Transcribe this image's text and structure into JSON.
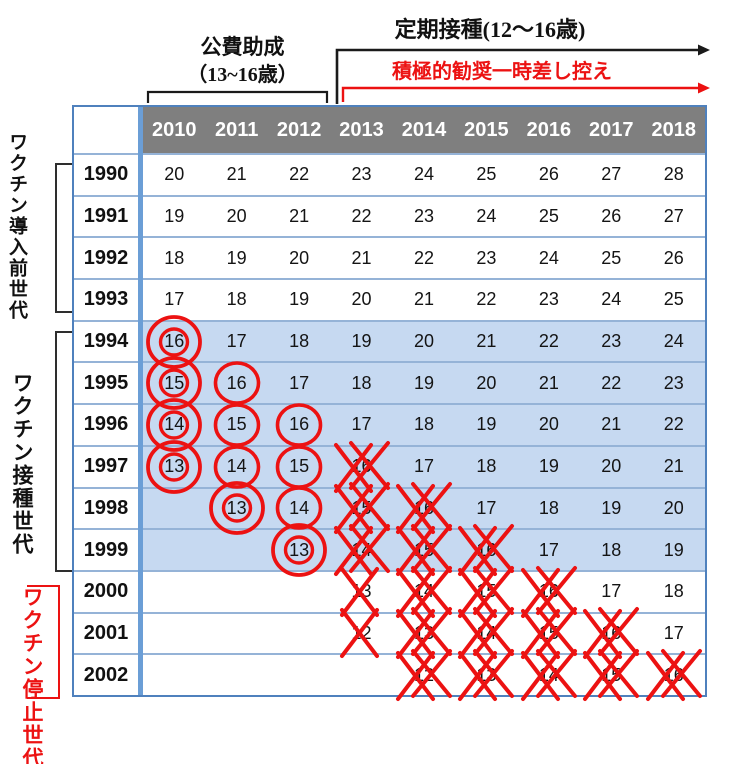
{
  "annotations": {
    "routine": "定期接種(12～16歳)",
    "subsidy_title": "公費助成",
    "subsidy_range": "（13~16歳）",
    "suspension": "積極的勧奨一時差し控え"
  },
  "side_labels": {
    "pre_vaccine": "ワクチン導入前世代",
    "vaccinated": "ワクチン接種世代",
    "stopped": "ワクチン停止世代"
  },
  "colors": {
    "accent_red": "#ec1212",
    "header_gray": "#7f7f7f",
    "highlight_blue": "#c6d9f1",
    "grid_blue": "#95b3d7",
    "outer_border_blue": "#4f81bd",
    "divider_blue": "#6b9ed6",
    "line_black": "#1a1a1a"
  },
  "chart_data": {
    "type": "table",
    "columns": [
      "2010",
      "2011",
      "2012",
      "2013",
      "2014",
      "2015",
      "2016",
      "2017",
      "2018"
    ],
    "row_header": "birth year",
    "cell_value": "age in that calendar year",
    "mark_codes": {
      "circle": "single red circle",
      "circle2": "double red circle",
      "x": "single red X strike",
      "xx": "double red X strike"
    },
    "row_groups": [
      {
        "label": "ワクチン導入前世代",
        "years": "1990–1993",
        "color": "#111111"
      },
      {
        "label": "ワクチン接種世代",
        "years": "1994–1999",
        "color": "#111111"
      },
      {
        "label": "ワクチン停止世代",
        "years": "2000–2002",
        "color": "#ec1212"
      }
    ],
    "rows": [
      {
        "year": "1990",
        "hl": false,
        "cells": [
          {
            "v": "20"
          },
          {
            "v": "21"
          },
          {
            "v": "22"
          },
          {
            "v": "23"
          },
          {
            "v": "24"
          },
          {
            "v": "25"
          },
          {
            "v": "26"
          },
          {
            "v": "27"
          },
          {
            "v": "28"
          }
        ]
      },
      {
        "year": "1991",
        "hl": false,
        "cells": [
          {
            "v": "19"
          },
          {
            "v": "20"
          },
          {
            "v": "21"
          },
          {
            "v": "22"
          },
          {
            "v": "23"
          },
          {
            "v": "24"
          },
          {
            "v": "25"
          },
          {
            "v": "26"
          },
          {
            "v": "27"
          }
        ]
      },
      {
        "year": "1992",
        "hl": false,
        "cells": [
          {
            "v": "18"
          },
          {
            "v": "19"
          },
          {
            "v": "20"
          },
          {
            "v": "21"
          },
          {
            "v": "22"
          },
          {
            "v": "23"
          },
          {
            "v": "24"
          },
          {
            "v": "25"
          },
          {
            "v": "26"
          }
        ]
      },
      {
        "year": "1993",
        "hl": false,
        "cells": [
          {
            "v": "17"
          },
          {
            "v": "18"
          },
          {
            "v": "19"
          },
          {
            "v": "20"
          },
          {
            "v": "21"
          },
          {
            "v": "22"
          },
          {
            "v": "23"
          },
          {
            "v": "24"
          },
          {
            "v": "25"
          }
        ]
      },
      {
        "year": "1994",
        "hl": true,
        "cells": [
          {
            "v": "16",
            "m": "circle2"
          },
          {
            "v": "17"
          },
          {
            "v": "18"
          },
          {
            "v": "19"
          },
          {
            "v": "20"
          },
          {
            "v": "21"
          },
          {
            "v": "22"
          },
          {
            "v": "23"
          },
          {
            "v": "24"
          }
        ]
      },
      {
        "year": "1995",
        "hl": true,
        "cells": [
          {
            "v": "15",
            "m": "circle2"
          },
          {
            "v": "16",
            "m": "circle"
          },
          {
            "v": "17"
          },
          {
            "v": "18"
          },
          {
            "v": "19"
          },
          {
            "v": "20"
          },
          {
            "v": "21"
          },
          {
            "v": "22"
          },
          {
            "v": "23"
          }
        ]
      },
      {
        "year": "1996",
        "hl": true,
        "cells": [
          {
            "v": "14",
            "m": "circle2"
          },
          {
            "v": "15",
            "m": "circle"
          },
          {
            "v": "16",
            "m": "circle"
          },
          {
            "v": "17"
          },
          {
            "v": "18"
          },
          {
            "v": "19"
          },
          {
            "v": "20"
          },
          {
            "v": "21"
          },
          {
            "v": "22"
          }
        ]
      },
      {
        "year": "1997",
        "hl": true,
        "cells": [
          {
            "v": "13",
            "m": "circle2"
          },
          {
            "v": "14",
            "m": "circle"
          },
          {
            "v": "15",
            "m": "circle"
          },
          {
            "v": "16",
            "m": "xx"
          },
          {
            "v": "17"
          },
          {
            "v": "18"
          },
          {
            "v": "19"
          },
          {
            "v": "20"
          },
          {
            "v": "21"
          }
        ]
      },
      {
        "year": "1998",
        "hl": true,
        "cells": [
          {
            "v": ""
          },
          {
            "v": "13",
            "m": "circle2"
          },
          {
            "v": "14",
            "m": "circle"
          },
          {
            "v": "15",
            "m": "xx"
          },
          {
            "v": "16",
            "m": "xx"
          },
          {
            "v": "17"
          },
          {
            "v": "18"
          },
          {
            "v": "19"
          },
          {
            "v": "20"
          }
        ]
      },
      {
        "year": "1999",
        "hl": true,
        "cells": [
          {
            "v": ""
          },
          {
            "v": ""
          },
          {
            "v": "13",
            "m": "circle2"
          },
          {
            "v": "14",
            "m": "xx"
          },
          {
            "v": "15",
            "m": "xx"
          },
          {
            "v": "16",
            "m": "xx"
          },
          {
            "v": "17"
          },
          {
            "v": "18"
          },
          {
            "v": "19"
          }
        ]
      },
      {
        "year": "2000",
        "hl": false,
        "cells": [
          {
            "v": ""
          },
          {
            "v": ""
          },
          {
            "v": ""
          },
          {
            "v": "13",
            "m": "x"
          },
          {
            "v": "14",
            "m": "xx"
          },
          {
            "v": "15",
            "m": "xx"
          },
          {
            "v": "16",
            "m": "xx"
          },
          {
            "v": "17"
          },
          {
            "v": "18"
          }
        ]
      },
      {
        "year": "2001",
        "hl": false,
        "cells": [
          {
            "v": ""
          },
          {
            "v": ""
          },
          {
            "v": ""
          },
          {
            "v": "12",
            "m": "x"
          },
          {
            "v": "13",
            "m": "xx"
          },
          {
            "v": "14",
            "m": "xx"
          },
          {
            "v": "15",
            "m": "xx"
          },
          {
            "v": "16",
            "m": "xx"
          },
          {
            "v": "17"
          }
        ]
      },
      {
        "year": "2002",
        "hl": false,
        "cells": [
          {
            "v": ""
          },
          {
            "v": ""
          },
          {
            "v": ""
          },
          {
            "v": ""
          },
          {
            "v": "12",
            "m": "xx"
          },
          {
            "v": "13",
            "m": "xx"
          },
          {
            "v": "14",
            "m": "xx"
          },
          {
            "v": "15",
            "m": "xx"
          },
          {
            "v": "16",
            "m": "xx"
          }
        ]
      }
    ]
  }
}
